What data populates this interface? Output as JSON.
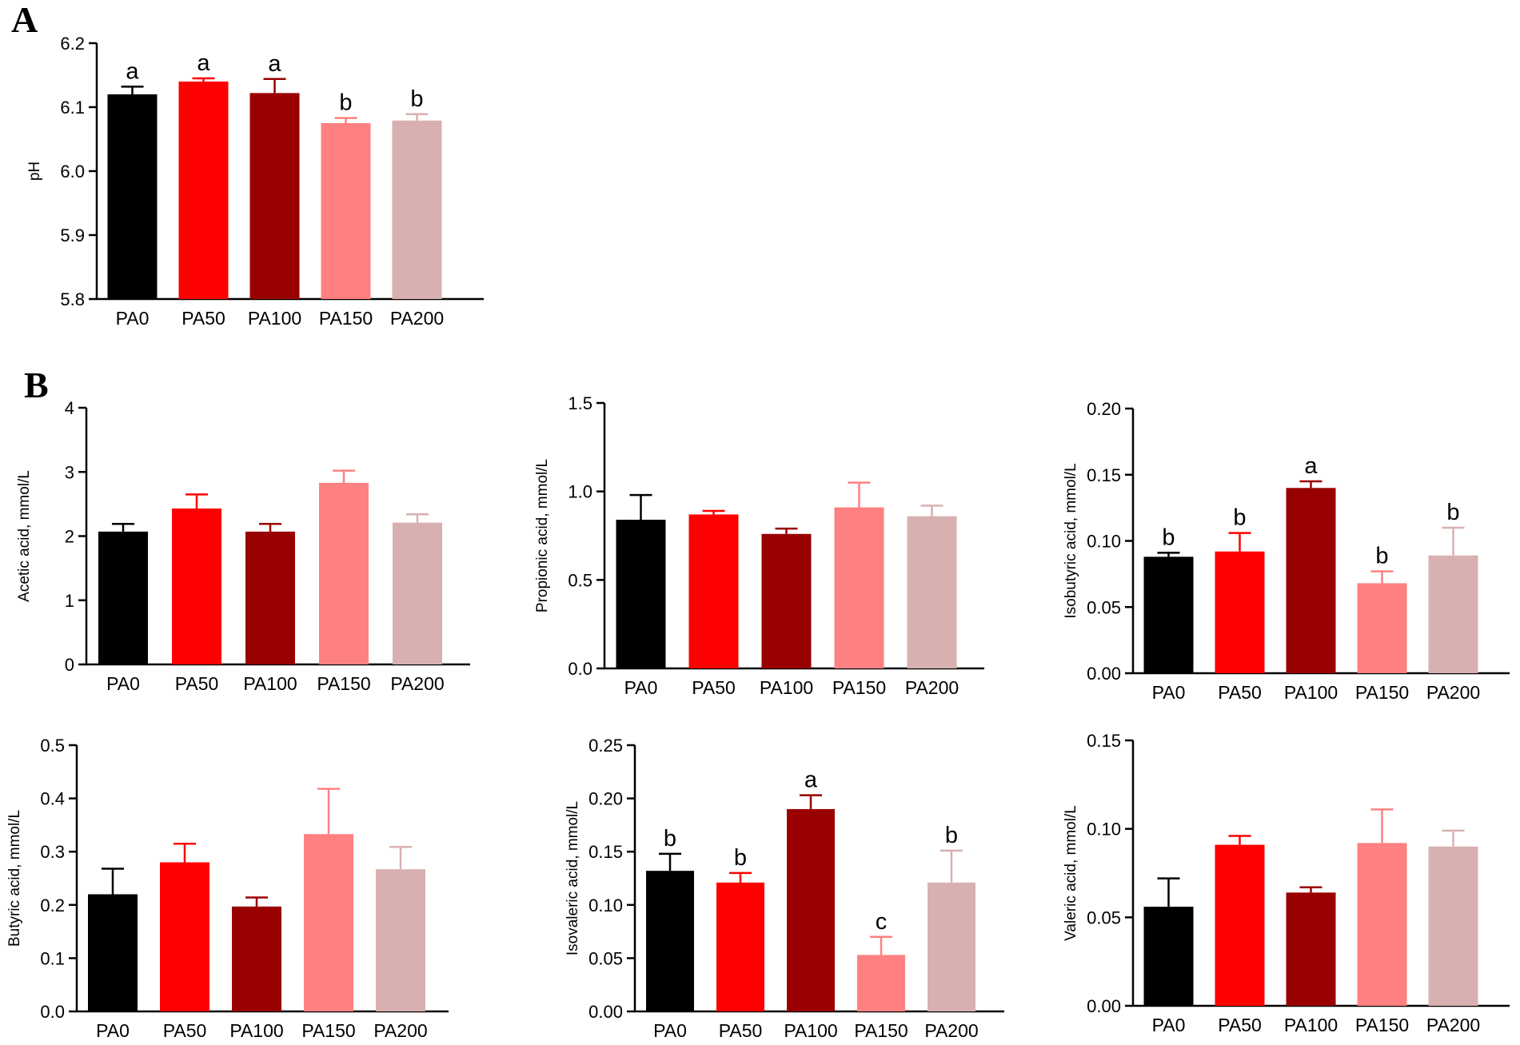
{
  "panel_labels": {
    "a": "A",
    "b": "B"
  },
  "colors": {
    "PA0": "#000000",
    "PA50": "#ff0000",
    "PA100": "#990000",
    "PA150": "#ff8080",
    "PA200": "#d8b0b0"
  },
  "chart_data": [
    {
      "id": "ph",
      "panel": "A",
      "type": "bar",
      "title": "",
      "xlabel": "",
      "ylabel": "pH",
      "categories": [
        "PA0",
        "PA50",
        "PA100",
        "PA150",
        "PA200"
      ],
      "values": [
        6.12,
        6.14,
        6.122,
        6.075,
        6.079
      ],
      "errors": [
        0.012,
        0.005,
        0.022,
        0.008,
        0.01
      ],
      "significance": [
        "a",
        "a",
        "a",
        "b",
        "b"
      ],
      "ylim": [
        5.8,
        6.2
      ],
      "yticks": [
        "5.8",
        "5.9",
        "6.0",
        "6.1",
        "6.2"
      ]
    },
    {
      "id": "acetic",
      "panel": "B",
      "type": "bar",
      "title": "",
      "xlabel": "",
      "ylabel": "Acetic acid, mmol/L",
      "categories": [
        "PA0",
        "PA50",
        "PA100",
        "PA150",
        "PA200"
      ],
      "values": [
        2.07,
        2.43,
        2.07,
        2.83,
        2.21
      ],
      "errors": [
        0.12,
        0.22,
        0.12,
        0.19,
        0.13
      ],
      "significance": [
        "",
        "",
        "",
        "",
        ""
      ],
      "ylim": [
        0,
        4
      ],
      "yticks": [
        "0",
        "1",
        "2",
        "3",
        "4"
      ]
    },
    {
      "id": "propionic",
      "panel": "B",
      "type": "bar",
      "title": "",
      "xlabel": "",
      "ylabel": "Propionic acid, mmol/L",
      "categories": [
        "PA0",
        "PA50",
        "PA100",
        "PA150",
        "PA200"
      ],
      "values": [
        0.84,
        0.87,
        0.76,
        0.91,
        0.86
      ],
      "errors": [
        0.14,
        0.02,
        0.03,
        0.14,
        0.06
      ],
      "significance": [
        "",
        "",
        "",
        "",
        ""
      ],
      "ylim": [
        0,
        1.5
      ],
      "yticks": [
        "0.0",
        "0.5",
        "1.0",
        "1.5"
      ]
    },
    {
      "id": "isobutyric",
      "panel": "B",
      "type": "bar",
      "title": "",
      "xlabel": "",
      "ylabel": "Isobutyric acid, mmol/L",
      "categories": [
        "PA0",
        "PA50",
        "PA100",
        "PA150",
        "PA200"
      ],
      "values": [
        0.088,
        0.092,
        0.14,
        0.068,
        0.089
      ],
      "errors": [
        0.003,
        0.014,
        0.005,
        0.009,
        0.021
      ],
      "significance": [
        "b",
        "b",
        "a",
        "b",
        "b"
      ],
      "ylim": [
        0,
        0.2
      ],
      "yticks": [
        "0.00",
        "0.05",
        "0.10",
        "0.15",
        "0.20"
      ]
    },
    {
      "id": "butyric",
      "panel": "B",
      "type": "bar",
      "title": "",
      "xlabel": "",
      "ylabel": "Butyric acid, mmol/L",
      "categories": [
        "PA0",
        "PA50",
        "PA100",
        "PA150",
        "PA200"
      ],
      "values": [
        0.22,
        0.28,
        0.197,
        0.333,
        0.267
      ],
      "errors": [
        0.048,
        0.035,
        0.017,
        0.085,
        0.042
      ],
      "significance": [
        "",
        "",
        "",
        "",
        ""
      ],
      "ylim": [
        0,
        0.5
      ],
      "yticks": [
        "0.0",
        "0.1",
        "0.2",
        "0.3",
        "0.4",
        "0.5"
      ]
    },
    {
      "id": "isovaleric",
      "panel": "B",
      "type": "bar",
      "title": "",
      "xlabel": "",
      "ylabel": "Isovaleric acid, mmol/L",
      "categories": [
        "PA0",
        "PA50",
        "PA100",
        "PA150",
        "PA200"
      ],
      "values": [
        0.132,
        0.121,
        0.19,
        0.053,
        0.121
      ],
      "errors": [
        0.016,
        0.009,
        0.013,
        0.017,
        0.03
      ],
      "significance": [
        "b",
        "b",
        "a",
        "c",
        "b"
      ],
      "ylim": [
        0,
        0.25
      ],
      "yticks": [
        "0.00",
        "0.05",
        "0.10",
        "0.15",
        "0.20",
        "0.25"
      ]
    },
    {
      "id": "valeric",
      "panel": "B",
      "type": "bar",
      "title": "",
      "xlabel": "",
      "ylabel": "Valeric acid, mmol/L",
      "categories": [
        "PA0",
        "PA50",
        "PA100",
        "PA150",
        "PA200"
      ],
      "values": [
        0.056,
        0.091,
        0.064,
        0.092,
        0.09
      ],
      "errors": [
        0.016,
        0.005,
        0.003,
        0.019,
        0.009
      ],
      "significance": [
        "",
        "",
        "",
        "",
        ""
      ],
      "ylim": [
        0,
        0.15
      ],
      "yticks": [
        "0.00",
        "0.05",
        "0.10",
        "0.15"
      ]
    }
  ]
}
